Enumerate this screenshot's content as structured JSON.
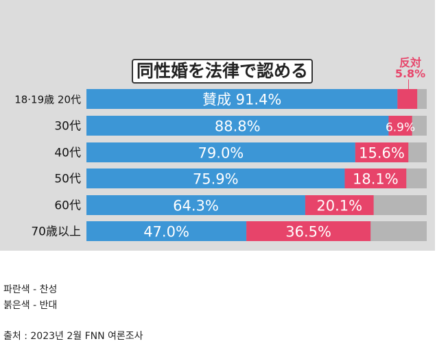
{
  "chart_data": {
    "type": "bar",
    "orientation": "horizontal",
    "stacked": true,
    "title": "同性婚を法律で認める",
    "oppose_label": "反対",
    "oppose_first_label": "5.8%",
    "support_prefix": "賛成",
    "categories": [
      "18·19歳 20代",
      "30代",
      "40代",
      "50代",
      "60代",
      "70歳以上"
    ],
    "series": [
      {
        "name": "賛成",
        "color": "#3c96d6",
        "values": [
          91.4,
          88.8,
          79.0,
          75.9,
          64.3,
          47.0
        ],
        "labels": [
          "91.4%",
          "88.8%",
          "79.0%",
          "75.9%",
          "64.3%",
          "47.0%"
        ]
      },
      {
        "name": "反対",
        "color": "#e7446a",
        "values": [
          5.8,
          6.9,
          15.6,
          18.1,
          20.1,
          36.5
        ],
        "labels": [
          "",
          "6.9%",
          "15.6%",
          "18.1%",
          "20.1%",
          "36.5%"
        ]
      }
    ],
    "remainder_color": "#b5b5b5",
    "xlim": [
      0,
      100
    ]
  },
  "notes": {
    "line1": "파란색 - 찬성",
    "line2": "붉은색 - 반대",
    "source": "출처 : 2023년 2월 FNN 여론조사"
  }
}
